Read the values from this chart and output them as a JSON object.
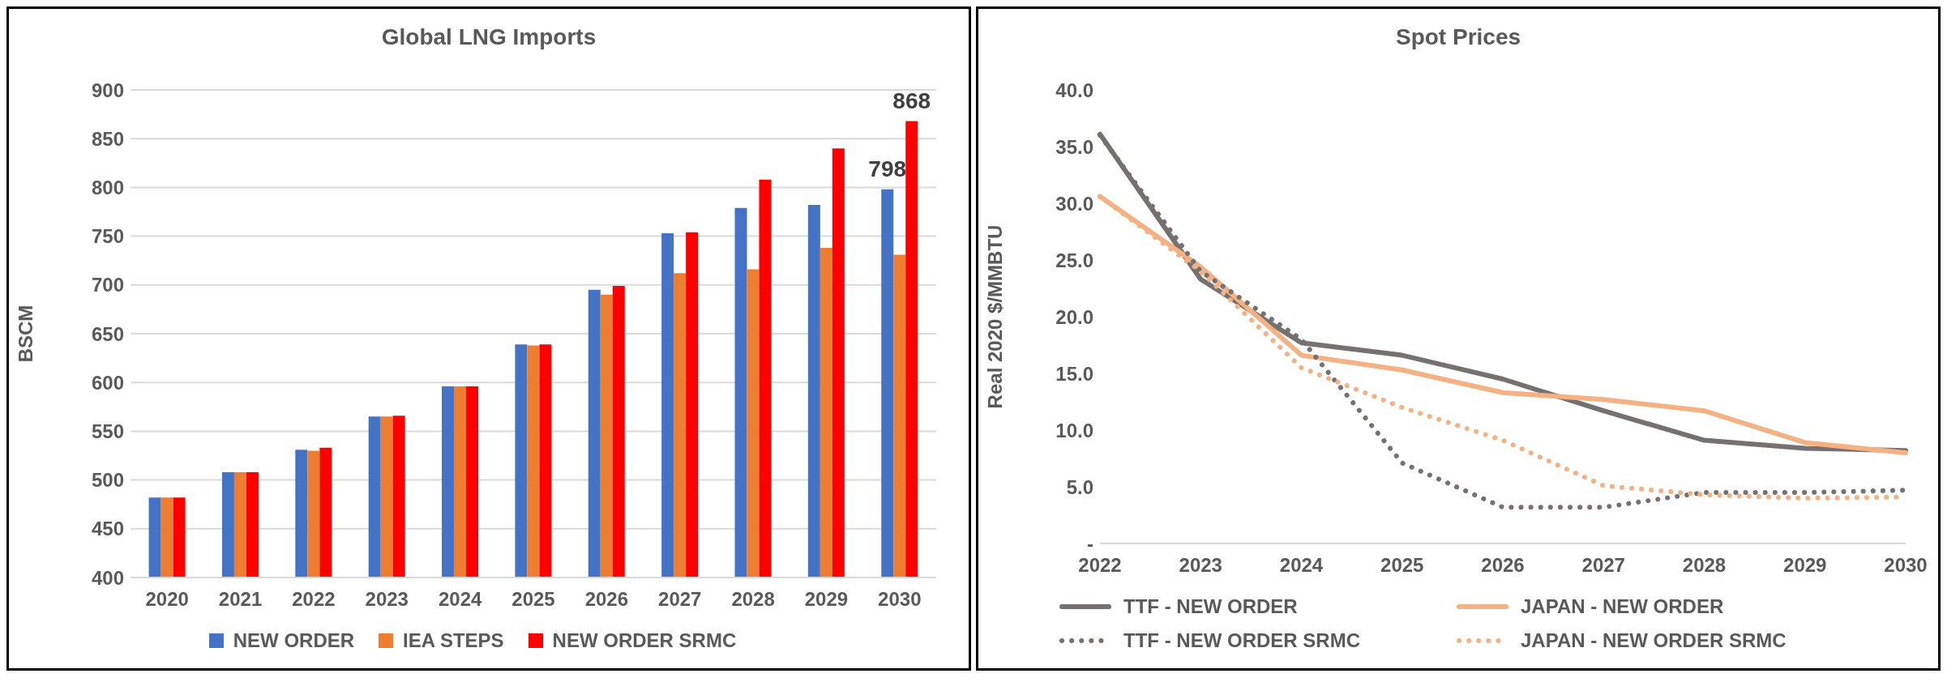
{
  "chart_data": [
    {
      "type": "bar",
      "title": "Global LNG Imports",
      "ylabel": "BSCM",
      "categories": [
        "2020",
        "2021",
        "2022",
        "2023",
        "2024",
        "2025",
        "2026",
        "2027",
        "2028",
        "2029",
        "2030"
      ],
      "series": [
        {
          "name": "NEW ORDER",
          "color": "#4472c4",
          "values": [
            482,
            508,
            531,
            565,
            596,
            639,
            695,
            753,
            779,
            782,
            798
          ],
          "value_labels": [
            null,
            null,
            null,
            null,
            null,
            null,
            null,
            null,
            null,
            null,
            "798"
          ]
        },
        {
          "name": "IEA STEPS",
          "color": "#ed7d31",
          "values": [
            482,
            508,
            530,
            565,
            596,
            638,
            690,
            712,
            716,
            738,
            731
          ]
        },
        {
          "name": "NEW ORDER SRMC",
          "color": "#ff0000",
          "values": [
            482,
            508,
            533,
            566,
            596,
            639,
            699,
            754,
            808,
            840,
            868
          ],
          "value_labels": [
            null,
            null,
            null,
            null,
            null,
            null,
            null,
            null,
            null,
            null,
            "868"
          ]
        }
      ],
      "ylim": [
        400,
        900
      ],
      "yticks": [
        400,
        450,
        500,
        550,
        600,
        650,
        700,
        750,
        800,
        850,
        900
      ],
      "grid": "y",
      "legend": "bottom"
    },
    {
      "type": "line",
      "title": "Spot Prices",
      "ylabel": "Real 2020 $/MMBTU",
      "categories": [
        "2022",
        "2023",
        "2024",
        "2025",
        "2026",
        "2027",
        "2028",
        "2029",
        "2030"
      ],
      "series": [
        {
          "name": "TTF - NEW ORDER",
          "color": "#767171",
          "line_style": "solid",
          "values": [
            36.1,
            23.3,
            17.7,
            16.6,
            14.5,
            11.7,
            9.1,
            8.4,
            8.2
          ]
        },
        {
          "name": "JAPAN - NEW ORDER",
          "color": "#f4b183",
          "line_style": "solid",
          "values": [
            30.6,
            24.4,
            16.6,
            15.3,
            13.3,
            12.7,
            11.7,
            8.9,
            8.0
          ]
        },
        {
          "name": "TTF - NEW ORDER SRMC",
          "color": "#767171",
          "line_style": "dotted",
          "values": [
            36.0,
            24.0,
            18.0,
            7.1,
            3.2,
            3.2,
            4.5,
            4.5,
            4.7
          ]
        },
        {
          "name": "JAPAN - NEW ORDER SRMC",
          "color": "#f4b183",
          "line_style": "dotted",
          "values": [
            30.6,
            24.0,
            15.5,
            12.0,
            9.1,
            5.1,
            4.3,
            4.0,
            4.1
          ]
        }
      ],
      "ylim": [
        0,
        40
      ],
      "yticks": [
        {
          "value": 0,
          "label": "-"
        },
        {
          "value": 5,
          "label": "5.0"
        },
        {
          "value": 10,
          "label": "10.0"
        },
        {
          "value": 15,
          "label": "15.0"
        },
        {
          "value": 20,
          "label": "20.0"
        },
        {
          "value": 25,
          "label": "25.0"
        },
        {
          "value": 30,
          "label": "30.0"
        },
        {
          "value": 35,
          "label": "35.0"
        },
        {
          "value": 40,
          "label": "40.0"
        }
      ],
      "grid": false,
      "legend": "bottom",
      "marker": "none"
    }
  ]
}
